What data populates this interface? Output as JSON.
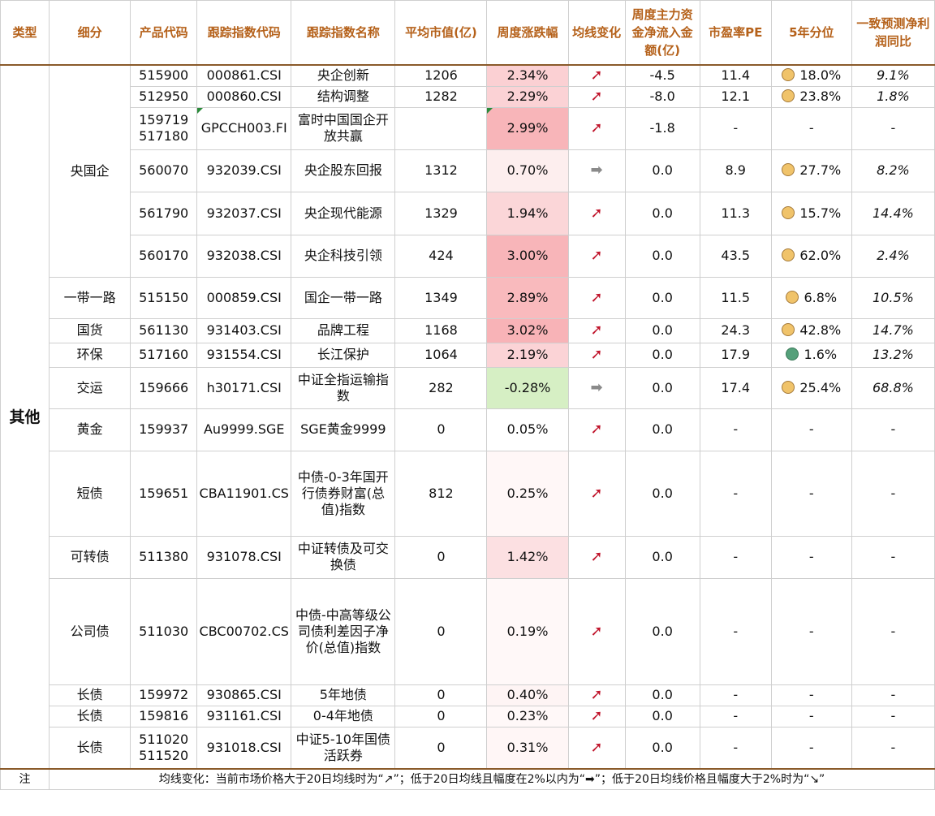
{
  "headers": [
    "类型",
    "细分",
    "产品代码",
    "跟踪指数代码",
    "跟踪指数名称",
    "平均市值(亿)",
    "周度涨跌幅",
    "均线变化",
    "周度主力资金净流入金额(亿)",
    "市盈率PE",
    "5年分位",
    "一致预测净利润同比"
  ],
  "type_label": "其他",
  "rows": [
    {
      "sub": "央国企",
      "code": "515900",
      "idx": "000861.CSI",
      "name": "央企创新",
      "cap": "1206",
      "chg": "2.34%",
      "chg_color": "#fbd0d3",
      "trend": "up",
      "flow": "-4.5",
      "pe": "11.4",
      "pctl": "18.0%",
      "dot": "yellow",
      "growth": "9.1%"
    },
    {
      "sub": "",
      "code": "512950",
      "idx": "000860.CSI",
      "name": "结构调整",
      "cap": "1282",
      "chg": "2.29%",
      "chg_color": "#fbd2d5",
      "trend": "up",
      "flow": "-8.0",
      "pe": "12.1",
      "pctl": "23.8%",
      "dot": "yellow",
      "growth": "1.8%"
    },
    {
      "sub": "",
      "code": "159719\n517180",
      "idx": "GPCCH003.FI",
      "name": "富时中国国企开放共赢",
      "cap": "",
      "chg": "2.99%",
      "chg_color": "#f8b5b9",
      "trend": "up",
      "flow": "-1.8",
      "pe": "-",
      "pctl": "-",
      "dot": "",
      "growth": "-"
    },
    {
      "sub": "",
      "code": "560070",
      "idx": "932039.CSI",
      "name": "央企股东回报",
      "cap": "1312",
      "chg": "0.70%",
      "chg_color": "#fdeeee",
      "trend": "flat",
      "flow": "0.0",
      "pe": "8.9",
      "pctl": "27.7%",
      "dot": "yellow",
      "growth": "8.2%"
    },
    {
      "sub": "",
      "code": "561790",
      "idx": "932037.CSI",
      "name": "央企现代能源",
      "cap": "1329",
      "chg": "1.94%",
      "chg_color": "#fbd6d8",
      "trend": "up",
      "flow": "0.0",
      "pe": "11.3",
      "pctl": "15.7%",
      "dot": "yellow",
      "growth": "14.4%"
    },
    {
      "sub": "",
      "code": "560170",
      "idx": "932038.CSI",
      "name": "央企科技引领",
      "cap": "424",
      "chg": "3.00%",
      "chg_color": "#f8b5b9",
      "trend": "up",
      "flow": "0.0",
      "pe": "43.5",
      "pctl": "62.0%",
      "dot": "yellow",
      "growth": "2.4%"
    },
    {
      "sub": "一带一路",
      "code": "515150",
      "idx": "000859.CSI",
      "name": "国企一带一路",
      "cap": "1349",
      "chg": "2.89%",
      "chg_color": "#f9babd",
      "trend": "up",
      "flow": "0.0",
      "pe": "11.5",
      "pctl": "6.8%",
      "dot": "yellow",
      "growth": "10.5%"
    },
    {
      "sub": "国货",
      "code": "561130",
      "idx": "931403.CSI",
      "name": "品牌工程",
      "cap": "1168",
      "chg": "3.02%",
      "chg_color": "#f8b3b7",
      "trend": "up",
      "flow": "0.0",
      "pe": "24.3",
      "pctl": "42.8%",
      "dot": "yellow",
      "growth": "14.7%"
    },
    {
      "sub": "环保",
      "code": "517160",
      "idx": "931554.CSI",
      "name": "长江保护",
      "cap": "1064",
      "chg": "2.19%",
      "chg_color": "#fbd3d6",
      "trend": "up",
      "flow": "0.0",
      "pe": "17.9",
      "pctl": "1.6%",
      "dot": "green",
      "growth": "13.2%"
    },
    {
      "sub": "交运",
      "code": "159666",
      "idx": "h30171.CSI",
      "name": "中证全指运输指数",
      "cap": "282",
      "chg": "-0.28%",
      "chg_color": "#d6efc4",
      "trend": "flat",
      "flow": "0.0",
      "pe": "17.4",
      "pctl": "25.4%",
      "dot": "yellow",
      "growth": "68.8%"
    },
    {
      "sub": "黄金",
      "code": "159937",
      "idx": "Au9999.SGE",
      "name": "SGE黄金9999",
      "cap": "0",
      "chg": "0.05%",
      "chg_color": "#ffffff",
      "trend": "up",
      "flow": "0.0",
      "pe": "-",
      "pctl": "-",
      "dot": "",
      "growth": "-"
    },
    {
      "sub": "短债",
      "code": "159651",
      "idx": "CBA11901.CS",
      "name": "中债-0-3年国开行债券财富(总值)指数",
      "cap": "812",
      "chg": "0.25%",
      "chg_color": "#fff7f7",
      "trend": "up",
      "flow": "0.0",
      "pe": "-",
      "pctl": "-",
      "dot": "",
      "growth": "-"
    },
    {
      "sub": "可转债",
      "code": "511380",
      "idx": "931078.CSI",
      "name": "中证转债及可交换债",
      "cap": "0",
      "chg": "1.42%",
      "chg_color": "#fce0e2",
      "trend": "up",
      "flow": "0.0",
      "pe": "-",
      "pctl": "-",
      "dot": "",
      "growth": "-"
    },
    {
      "sub": "公司债",
      "code": "511030",
      "idx": "CBC00702.CS",
      "name": "中债-中高等级公司债利差因子净价(总值)指数",
      "cap": "0",
      "chg": "0.19%",
      "chg_color": "#fff8f8",
      "trend": "up",
      "flow": "0.0",
      "pe": "-",
      "pctl": "-",
      "dot": "",
      "growth": "-"
    },
    {
      "sub": "长债",
      "code": "159972",
      "idx": "930865.CSI",
      "name": "5年地债",
      "cap": "0",
      "chg": "0.40%",
      "chg_color": "#fef4f4",
      "trend": "up",
      "flow": "0.0",
      "pe": "-",
      "pctl": "-",
      "dot": "",
      "growth": "-"
    },
    {
      "sub": "长债",
      "code": "159816",
      "idx": "931161.CSI",
      "name": "0-4年地债",
      "cap": "0",
      "chg": "0.23%",
      "chg_color": "#fff8f8",
      "trend": "up",
      "flow": "0.0",
      "pe": "-",
      "pctl": "-",
      "dot": "",
      "growth": "-"
    },
    {
      "sub": "长债",
      "code": "511020\n511520",
      "idx": "931018.CSI",
      "name": "中证5-10年国债活跃券",
      "cap": "0",
      "chg": "0.31%",
      "chg_color": "#fff6f6",
      "trend": "up",
      "flow": "0.0",
      "pe": "-",
      "pctl": "-",
      "dot": "",
      "growth": "-"
    }
  ],
  "note_label": "注",
  "note_text": "均线变化：当前市场价格大于20日均线时为“↗”；低于20日均线且幅度在2%以内为“➡”；低于20日均线价格且幅度大于2%时为“↘”"
}
